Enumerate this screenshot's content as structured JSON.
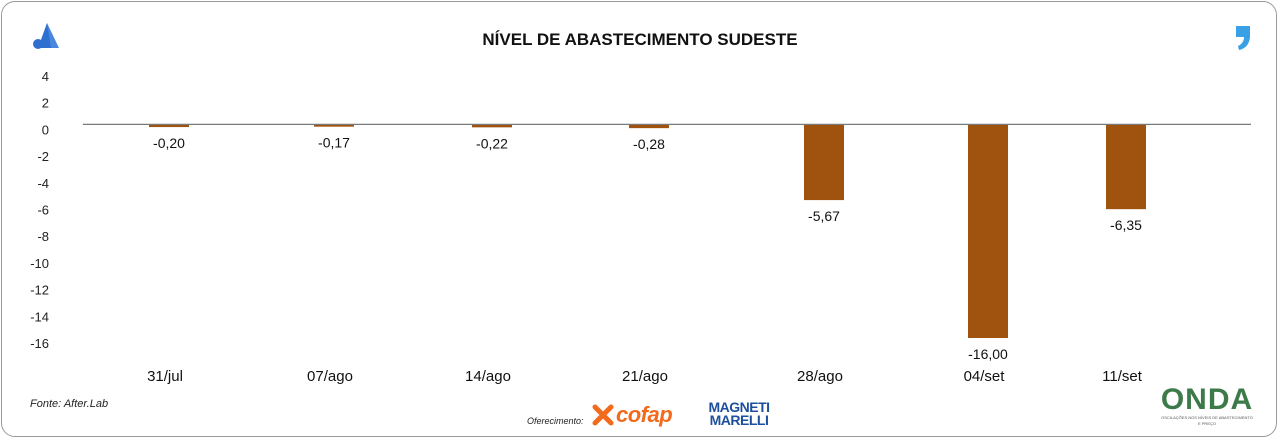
{
  "title": "NÍVEL DE ABASTECIMENTO SUDESTE",
  "source": "Fonte: After.Lab",
  "sponsor": {
    "label": "Oferecimento:",
    "brands": [
      "cofap",
      "MAGNETI MARELLI"
    ]
  },
  "onda": {
    "word": "ONDA",
    "tagline": "OSCILAÇÕES NOS NÍVEIS DE ABASTECIMENTO E PREÇO"
  },
  "colors": {
    "bar": "#a0520f",
    "axis": "#7a7a7a",
    "logo_blue": "#2f6fd0",
    "comma_blue": "#3aa0e6",
    "cofap_orange": "#f26a1b",
    "magneti_blue": "#1d4f9c",
    "onda_green": "#3d7a4a"
  },
  "chart_data": {
    "type": "bar",
    "title": "NÍVEL DE ABASTECIMENTO SUDESTE",
    "categories": [
      "31/jul",
      "07/ago",
      "14/ago",
      "21/ago",
      "28/ago",
      "04/set",
      "11/set"
    ],
    "values": [
      -0.2,
      -0.17,
      -0.22,
      -0.28,
      -5.67,
      -16.0,
      -6.35
    ],
    "value_labels": [
      "-0,20",
      "-0,17",
      "-0,22",
      "-0,28",
      "-5,67",
      "-16,00",
      "-6,35"
    ],
    "ylim": [
      -16,
      4
    ],
    "yticks": [
      4,
      2,
      0,
      -2,
      -4,
      -6,
      -8,
      -10,
      -12,
      -14,
      -16
    ],
    "xlabel": "",
    "ylabel": "",
    "grid": false,
    "legend": "none"
  }
}
